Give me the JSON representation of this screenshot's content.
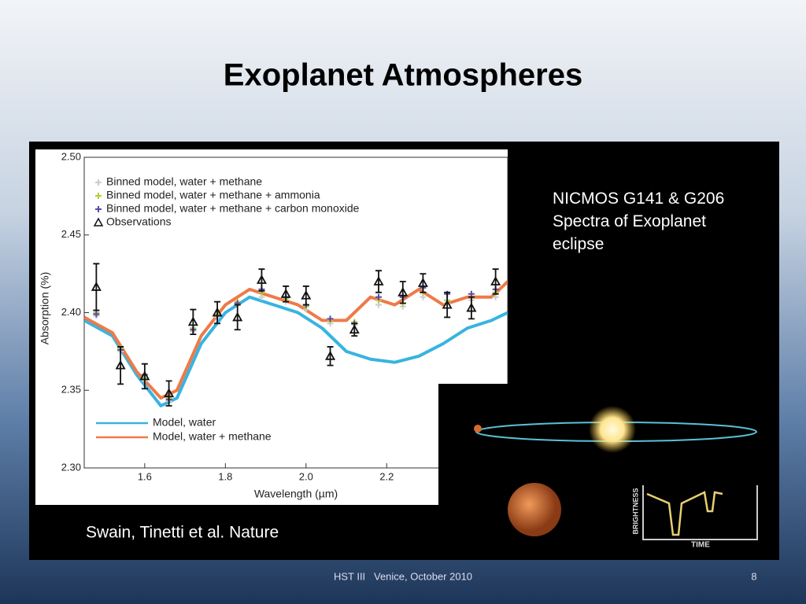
{
  "title": "Exoplanet Atmospheres",
  "caption_right": "NICMOS G141 & G206 Spectra of Exoplanet eclipse",
  "caption_left": "Swain, Tinetti et al. Nature",
  "footer": "HST III   Venice, October 2010",
  "page_number": "8",
  "illustration": {
    "y_label": "Brightness",
    "x_label": "Time"
  },
  "chart_data": {
    "type": "line",
    "xlabel": "Wavelength (µm)",
    "ylabel": "Absorption (%)",
    "xlim": [
      1.45,
      2.5
    ],
    "ylim": [
      2.3,
      2.5
    ],
    "xticks": [
      1.6,
      1.8,
      {
        "value": 2.0,
        "label": "2.0"
      },
      2.2
    ],
    "yticks": [
      {
        "value": 2.3,
        "label": "2.30"
      },
      2.35,
      {
        "value": 2.4,
        "label": "2.40"
      },
      2.45,
      {
        "value": 2.5,
        "label": "2.50"
      }
    ],
    "series": [
      {
        "name": "Model, water",
        "color": "#38b4e0",
        "x": [
          1.45,
          1.52,
          1.58,
          1.64,
          1.68,
          1.74,
          1.8,
          1.86,
          1.92,
          1.98,
          2.04,
          2.1,
          2.16,
          2.22,
          2.28,
          2.34,
          2.4,
          2.46,
          2.5
        ],
        "values": [
          2.395,
          2.385,
          2.36,
          2.34,
          2.345,
          2.38,
          2.4,
          2.41,
          2.405,
          2.4,
          2.39,
          2.375,
          2.37,
          2.368,
          2.372,
          2.38,
          2.39,
          2.395,
          2.4
        ]
      },
      {
        "name": "Model, water + methane",
        "color": "#ee7a48",
        "x": [
          1.45,
          1.52,
          1.58,
          1.64,
          1.68,
          1.74,
          1.8,
          1.86,
          1.92,
          1.98,
          2.04,
          2.1,
          2.16,
          2.22,
          2.28,
          2.34,
          2.4,
          2.46,
          2.5
        ],
        "values": [
          2.397,
          2.387,
          2.362,
          2.345,
          2.35,
          2.385,
          2.405,
          2.415,
          2.41,
          2.405,
          2.395,
          2.395,
          2.41,
          2.405,
          2.415,
          2.405,
          2.41,
          2.41,
          2.42
        ]
      }
    ],
    "observations": {
      "x": [
        1.48,
        1.54,
        1.6,
        1.66,
        1.72,
        1.78,
        1.83,
        1.89,
        1.95,
        2.0,
        2.06,
        2.12,
        2.18,
        2.24,
        2.29,
        2.35,
        2.41,
        2.47
      ],
      "binned": [
        {
          "name": "Binned model, water + methane",
          "color": "#cccccc",
          "values": [
            2.398,
            2.375,
            2.356,
            2.343,
            2.388,
            2.397,
            2.405,
            2.41,
            2.407,
            2.402,
            2.393,
            2.392,
            2.405,
            2.404,
            2.41,
            2.406,
            2.408,
            2.41
          ]
        },
        {
          "name": "Binned model, water + methane + ammonia",
          "color": "#b7cc3a",
          "values": [
            2.4,
            2.377,
            2.358,
            2.345,
            2.39,
            2.399,
            2.407,
            2.413,
            2.409,
            2.404,
            2.395,
            2.394,
            2.408,
            2.406,
            2.413,
            2.408,
            2.41,
            2.413
          ]
        },
        {
          "name": "Binned model, water + methane + carbon monoxide",
          "color": "#5a4aa8",
          "values": [
            2.399,
            2.376,
            2.36,
            2.344,
            2.389,
            2.398,
            2.406,
            2.415,
            2.41,
            2.405,
            2.396,
            2.393,
            2.41,
            2.41,
            2.416,
            2.412,
            2.412,
            2.415
          ]
        }
      ],
      "name": "Observations",
      "values": [
        2.4165,
        2.366,
        2.359,
        2.348,
        2.394,
        2.4,
        2.397,
        2.421,
        2.412,
        2.411,
        2.372,
        2.389,
        2.42,
        2.413,
        2.419,
        2.405,
        2.403,
        2.42
      ],
      "errors": [
        0.015,
        0.012,
        0.008,
        0.008,
        0.008,
        0.007,
        0.008,
        0.007,
        0.005,
        0.006,
        0.006,
        0.004,
        0.007,
        0.007,
        0.006,
        0.008,
        0.007,
        0.008
      ]
    }
  }
}
